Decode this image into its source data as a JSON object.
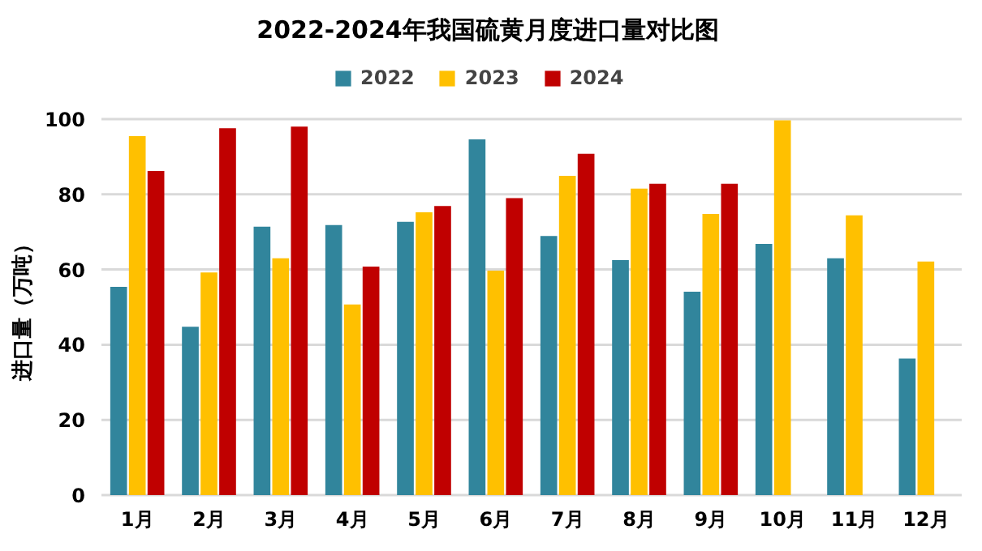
{
  "chart_data": {
    "type": "bar",
    "title": "2022-2024年我国硫黄月度进口量对比图",
    "ylabel": "进口量（万吨）",
    "categories": [
      "1月",
      "2月",
      "3月",
      "4月",
      "5月",
      "6月",
      "7月",
      "8月",
      "9月",
      "10月",
      "11月",
      "12月"
    ],
    "series": [
      {
        "name": "2022",
        "color": "#31859c",
        "values": [
          55.4,
          44.8,
          71.4,
          71.8,
          72.7,
          94.6,
          68.9,
          62.5,
          54.1,
          66.8,
          63.0,
          36.3
        ]
      },
      {
        "name": "2023",
        "color": "#ffc000",
        "values": [
          95.5,
          59.2,
          63.0,
          50.7,
          75.2,
          59.7,
          84.9,
          81.5,
          74.8,
          99.7,
          74.4,
          62.1
        ]
      },
      {
        "name": "2024",
        "color": "#c00000",
        "values": [
          86.2,
          97.6,
          98.0,
          60.8,
          76.9,
          79.0,
          90.8,
          82.8,
          82.8,
          null,
          null,
          null
        ]
      }
    ],
    "ylim": [
      0,
      100
    ],
    "yticks": [
      0,
      20,
      40,
      60,
      80,
      100
    ],
    "grid": "y",
    "legend": "top"
  }
}
